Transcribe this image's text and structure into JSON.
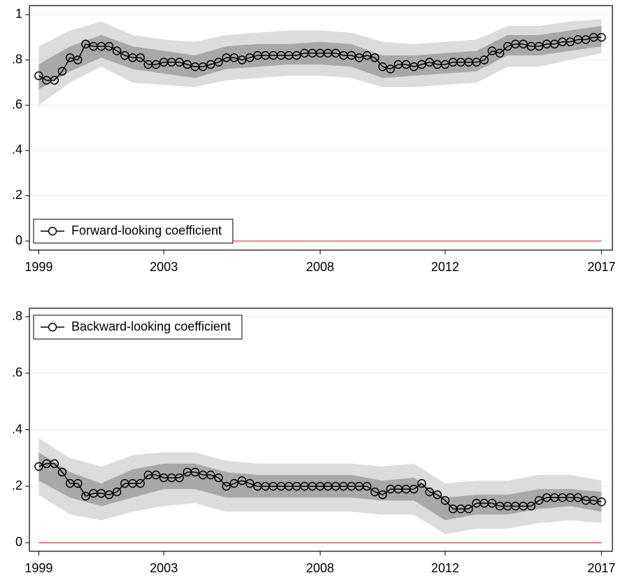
{
  "chart_data": [
    {
      "type": "line",
      "x": [
        1999,
        1999.25,
        1999.5,
        1999.75,
        2000,
        2000.25,
        2000.5,
        2000.75,
        2001,
        2001.25,
        2001.5,
        2001.75,
        2002,
        2002.25,
        2002.5,
        2002.75,
        2003,
        2003.25,
        2003.5,
        2003.75,
        2004,
        2004.25,
        2004.5,
        2004.75,
        2005,
        2005.25,
        2005.5,
        2005.75,
        2006,
        2006.25,
        2006.5,
        2006.75,
        2007,
        2007.25,
        2007.5,
        2007.75,
        2008,
        2008.25,
        2008.5,
        2008.75,
        2009,
        2009.25,
        2009.5,
        2009.75,
        2010,
        2010.25,
        2010.5,
        2010.75,
        2011,
        2011.25,
        2011.5,
        2011.75,
        2012,
        2012.25,
        2012.5,
        2012.75,
        2013,
        2013.25,
        2013.5,
        2013.75,
        2014,
        2014.25,
        2014.5,
        2014.75,
        2015,
        2015.25,
        2015.5,
        2015.75,
        2016,
        2016.25,
        2016.5,
        2016.75,
        2017
      ],
      "series": [
        {
          "name": "Forward-looking coefficient",
          "color": "#000000",
          "values": [
            0.73,
            0.71,
            0.71,
            0.75,
            0.81,
            0.8,
            0.87,
            0.86,
            0.86,
            0.86,
            0.84,
            0.82,
            0.81,
            0.81,
            0.78,
            0.78,
            0.79,
            0.79,
            0.79,
            0.78,
            0.77,
            0.77,
            0.78,
            0.79,
            0.81,
            0.81,
            0.8,
            0.81,
            0.82,
            0.82,
            0.82,
            0.82,
            0.82,
            0.82,
            0.83,
            0.83,
            0.83,
            0.83,
            0.83,
            0.82,
            0.82,
            0.81,
            0.82,
            0.81,
            0.77,
            0.76,
            0.78,
            0.78,
            0.77,
            0.78,
            0.79,
            0.78,
            0.78,
            0.79,
            0.79,
            0.79,
            0.79,
            0.8,
            0.84,
            0.83,
            0.86,
            0.87,
            0.87,
            0.86,
            0.86,
            0.87,
            0.87,
            0.88,
            0.88,
            0.89,
            0.89,
            0.9,
            0.9
          ]
        }
      ],
      "bands_x": [
        1999,
        2000,
        2001,
        2002,
        2003,
        2004,
        2005,
        2006,
        2007,
        2008,
        2009,
        2010,
        2011,
        2012,
        2013,
        2014,
        2015,
        2016,
        2017
      ],
      "bands": [
        {
          "color": "#dcdcdc",
          "upper": [
            0.86,
            0.93,
            0.97,
            0.91,
            0.89,
            0.88,
            0.91,
            0.92,
            0.93,
            0.93,
            0.92,
            0.88,
            0.87,
            0.88,
            0.89,
            0.95,
            0.95,
            0.97,
            0.98
          ],
          "lower": [
            0.6,
            0.7,
            0.77,
            0.7,
            0.69,
            0.68,
            0.71,
            0.72,
            0.73,
            0.73,
            0.72,
            0.68,
            0.68,
            0.69,
            0.7,
            0.77,
            0.77,
            0.8,
            0.83
          ]
        },
        {
          "color": "#a8a8a8",
          "upper": [
            0.78,
            0.86,
            0.91,
            0.86,
            0.84,
            0.82,
            0.86,
            0.87,
            0.87,
            0.88,
            0.87,
            0.82,
            0.82,
            0.83,
            0.84,
            0.91,
            0.91,
            0.93,
            0.95
          ],
          "lower": [
            0.67,
            0.75,
            0.81,
            0.76,
            0.74,
            0.72,
            0.76,
            0.77,
            0.78,
            0.78,
            0.77,
            0.72,
            0.73,
            0.74,
            0.75,
            0.82,
            0.82,
            0.84,
            0.86
          ]
        }
      ],
      "reference_line": {
        "value": 0,
        "color": "#e03030"
      },
      "xlim": [
        1998.7,
        2017.35
      ],
      "xticks": [
        1999,
        2003,
        2008,
        2012,
        2017
      ],
      "ylim": [
        -0.04,
        1.04
      ],
      "yticks": [
        0,
        {
          "value": 0.2,
          "label": ".2"
        },
        {
          "value": 0.4,
          "label": ".4"
        },
        {
          "value": 0.6,
          "label": ".6"
        },
        {
          "value": 0.8,
          "label": ".8"
        },
        1
      ],
      "grid": true,
      "legend": "lower left"
    },
    {
      "type": "line",
      "x": [
        1999,
        1999.25,
        1999.5,
        1999.75,
        2000,
        2000.25,
        2000.5,
        2000.75,
        2001,
        2001.25,
        2001.5,
        2001.75,
        2002,
        2002.25,
        2002.5,
        2002.75,
        2003,
        2003.25,
        2003.5,
        2003.75,
        2004,
        2004.25,
        2004.5,
        2004.75,
        2005,
        2005.25,
        2005.5,
        2005.75,
        2006,
        2006.25,
        2006.5,
        2006.75,
        2007,
        2007.25,
        2007.5,
        2007.75,
        2008,
        2008.25,
        2008.5,
        2008.75,
        2009,
        2009.25,
        2009.5,
        2009.75,
        2010,
        2010.25,
        2010.5,
        2010.75,
        2011,
        2011.25,
        2011.5,
        2011.75,
        2012,
        2012.25,
        2012.5,
        2012.75,
        2013,
        2013.25,
        2013.5,
        2013.75,
        2014,
        2014.25,
        2014.5,
        2014.75,
        2015,
        2015.25,
        2015.5,
        2015.75,
        2016,
        2016.25,
        2016.5,
        2016.75,
        2017
      ],
      "series": [
        {
          "name": "Backward-looking coefficient",
          "color": "#000000",
          "values": [
            0.27,
            0.28,
            0.28,
            0.25,
            0.21,
            0.21,
            0.165,
            0.175,
            0.175,
            0.17,
            0.18,
            0.21,
            0.21,
            0.21,
            0.24,
            0.24,
            0.23,
            0.23,
            0.23,
            0.25,
            0.25,
            0.24,
            0.24,
            0.23,
            0.2,
            0.21,
            0.22,
            0.21,
            0.2,
            0.2,
            0.2,
            0.2,
            0.2,
            0.2,
            0.2,
            0.2,
            0.2,
            0.2,
            0.2,
            0.2,
            0.2,
            0.2,
            0.2,
            0.18,
            0.17,
            0.19,
            0.19,
            0.19,
            0.19,
            0.21,
            0.18,
            0.17,
            0.15,
            0.12,
            0.12,
            0.12,
            0.14,
            0.14,
            0.14,
            0.13,
            0.13,
            0.13,
            0.13,
            0.13,
            0.15,
            0.16,
            0.16,
            0.16,
            0.16,
            0.16,
            0.15,
            0.15,
            0.145
          ]
        }
      ],
      "bands_x": [
        1999,
        2000,
        2001,
        2002,
        2003,
        2004,
        2005,
        2006,
        2007,
        2008,
        2009,
        2010,
        2011,
        2012,
        2013,
        2014,
        2015,
        2016,
        2017
      ],
      "bands": [
        {
          "color": "#dcdcdc",
          "upper": [
            0.37,
            0.3,
            0.27,
            0.31,
            0.32,
            0.32,
            0.29,
            0.28,
            0.28,
            0.28,
            0.28,
            0.27,
            0.28,
            0.21,
            0.22,
            0.22,
            0.24,
            0.24,
            0.22
          ],
          "lower": [
            0.17,
            0.1,
            0.08,
            0.11,
            0.13,
            0.14,
            0.11,
            0.11,
            0.11,
            0.11,
            0.11,
            0.1,
            0.1,
            0.03,
            0.05,
            0.05,
            0.07,
            0.08,
            0.07
          ]
        },
        {
          "color": "#a8a8a8",
          "upper": [
            0.32,
            0.25,
            0.21,
            0.26,
            0.28,
            0.28,
            0.25,
            0.24,
            0.24,
            0.24,
            0.24,
            0.22,
            0.23,
            0.16,
            0.17,
            0.17,
            0.19,
            0.19,
            0.18
          ],
          "lower": [
            0.22,
            0.16,
            0.13,
            0.16,
            0.19,
            0.19,
            0.16,
            0.16,
            0.16,
            0.16,
            0.16,
            0.15,
            0.15,
            0.08,
            0.1,
            0.1,
            0.12,
            0.13,
            0.11
          ]
        }
      ],
      "reference_line": {
        "value": 0,
        "color": "#e03030"
      },
      "xlim": [
        1998.7,
        2017.35
      ],
      "xticks": [
        1999,
        2003,
        2008,
        2012,
        2017
      ],
      "ylim": [
        -0.03,
        0.83
      ],
      "yticks": [
        0,
        {
          "value": 0.2,
          "label": ".2"
        },
        {
          "value": 0.4,
          "label": ".4"
        },
        {
          "value": 0.6,
          "label": ".6"
        },
        {
          "value": 0.8,
          "label": ".8"
        }
      ],
      "grid": true,
      "legend": "upper left"
    }
  ]
}
